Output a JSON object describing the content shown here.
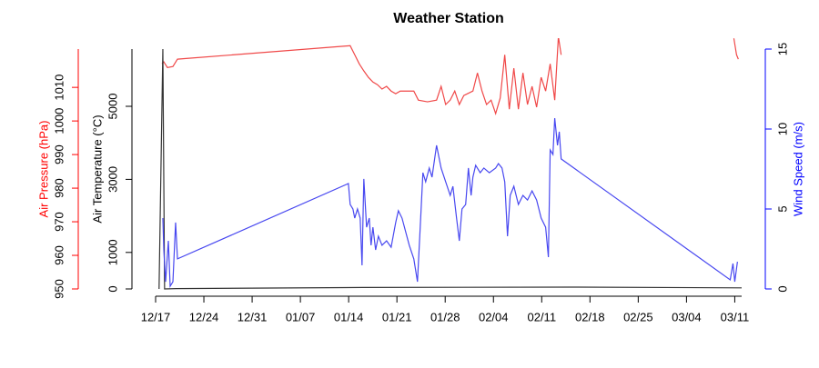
{
  "chart_data": {
    "type": "line",
    "title": "Weather Station",
    "xlim": [
      0,
      85
    ],
    "xticks": [
      {
        "value": 0,
        "label": "12/17"
      },
      {
        "value": 7,
        "label": "12/24"
      },
      {
        "value": 14,
        "label": "12/31"
      },
      {
        "value": 21,
        "label": "01/07"
      },
      {
        "value": 28,
        "label": "01/14"
      },
      {
        "value": 35,
        "label": "01/21"
      },
      {
        "value": 42,
        "label": "01/28"
      },
      {
        "value": 49,
        "label": "02/04"
      },
      {
        "value": 56,
        "label": "02/11"
      },
      {
        "value": 63,
        "label": "02/18"
      },
      {
        "value": 70,
        "label": "02/25"
      },
      {
        "value": 77,
        "label": "03/04"
      },
      {
        "value": 84,
        "label": "03/11"
      }
    ],
    "axes": [
      {
        "label": "Air Pressure (hPa)",
        "color": "#ff0000",
        "ylim": [
          950,
          1021.4
        ],
        "yticks": [
          950,
          960,
          970,
          980,
          990,
          1000,
          1010
        ]
      },
      {
        "label": "Air Temperature (°C)",
        "color": "#000000",
        "ylim": [
          0,
          6567
        ],
        "yticks": [
          0,
          1000,
          3000,
          5000
        ]
      },
      {
        "label": "Wind Speed (m/s)",
        "color": "#0000ff",
        "ylim": [
          0,
          15
        ],
        "yticks": [
          0,
          5,
          10,
          15
        ]
      }
    ],
    "series": [
      {
        "axis": 0,
        "color": "#f04848",
        "x": [
          0.92,
          1.19,
          1.71,
          2.51,
          3.17,
          28.22,
          28.88,
          29.54,
          30.2,
          30.86,
          31.52,
          32.18,
          32.84,
          33.5,
          34.16,
          34.82,
          35.48,
          37.45,
          38.11,
          39.43,
          40.75,
          41.41,
          42.07,
          42.73,
          43.39,
          44.05,
          44.71,
          46.02,
          46.68,
          47.34,
          48.0,
          48.66,
          49.32,
          49.98,
          50.64,
          51.3,
          51.96,
          52.62,
          53.28,
          53.94,
          54.6,
          55.26,
          55.92,
          56.57,
          57.23,
          57.89,
          58.42,
          58.82,
          70,
          83.87,
          84.26,
          84.52
        ],
        "values": [
          1017.0,
          1017.6,
          1015.9,
          1016.2,
          1018.4,
          1022.4,
          1019.7,
          1017.0,
          1014.9,
          1013.0,
          1011.6,
          1010.8,
          1009.5,
          1010.3,
          1008.9,
          1008.1,
          1008.9,
          1008.9,
          1006.2,
          1005.7,
          1006.2,
          1010.3,
          1004.9,
          1006.2,
          1008.9,
          1004.9,
          1007.6,
          1008.9,
          1014.3,
          1008.9,
          1004.9,
          1006.2,
          1002.2,
          1006.8,
          1019.7,
          1003.5,
          1015.7,
          1003.5,
          1014.3,
          1004.9,
          1010.3,
          1004.1,
          1013.0,
          1008.9,
          1017.0,
          1006.2,
          1025.1,
          1019.7,
          null,
          1024.6,
          1019.7,
          1018.4
        ]
      },
      {
        "axis": 1,
        "color": "#333333",
        "x": [
          0.5,
          1.05,
          1.3,
          3,
          30,
          60,
          85
        ],
        "values": [
          0,
          6567,
          0,
          10,
          40,
          50,
          30
        ]
      },
      {
        "axis": 2,
        "color": "#4848f0",
        "x": [
          1.05,
          1.19,
          1.45,
          1.85,
          2.11,
          2.51,
          2.9,
          3.17,
          27.96,
          28.22,
          28.62,
          28.88,
          29.28,
          29.67,
          29.94,
          30.2,
          30.6,
          30.99,
          31.25,
          31.52,
          31.91,
          32.31,
          32.84,
          33.5,
          34.16,
          34.82,
          35.21,
          35.74,
          36.79,
          37.45,
          37.98,
          38.38,
          38.77,
          39.17,
          39.69,
          40.09,
          40.75,
          41.41,
          42.07,
          42.73,
          43.12,
          43.65,
          44.05,
          44.44,
          44.97,
          45.37,
          45.76,
          46.02,
          46.42,
          47.08,
          47.61,
          48.4,
          49.32,
          49.72,
          50.24,
          50.64,
          51.04,
          51.43,
          51.96,
          52.62,
          53.28,
          53.94,
          54.6,
          55.26,
          55.92,
          56.57,
          56.97,
          57.23,
          57.63,
          57.89,
          58.29,
          58.55,
          58.82,
          83.34,
          83.74,
          84.0,
          84.39
        ],
        "values": [
          4.43,
          2.44,
          0.45,
          3.01,
          0.17,
          0.45,
          4.15,
          1.88,
          6.59,
          5.28,
          5.0,
          4.43,
          5.0,
          4.43,
          1.48,
          6.88,
          3.86,
          4.43,
          2.73,
          3.86,
          2.44,
          3.3,
          2.73,
          3.01,
          2.61,
          4.15,
          4.89,
          4.43,
          2.73,
          1.88,
          0.45,
          3.86,
          7.27,
          6.7,
          7.56,
          6.99,
          8.98,
          7.56,
          6.7,
          5.85,
          6.42,
          4.43,
          3.01,
          5.0,
          5.28,
          7.56,
          5.85,
          6.99,
          7.73,
          7.27,
          7.56,
          7.27,
          7.56,
          7.84,
          7.56,
          6.7,
          3.3,
          5.85,
          6.42,
          5.28,
          5.85,
          5.56,
          6.13,
          5.56,
          4.43,
          3.86,
          1.99,
          8.69,
          8.41,
          10.68,
          8.98,
          9.83,
          8.13,
          0.57,
          1.59,
          0.45,
          1.7
        ]
      }
    ]
  }
}
